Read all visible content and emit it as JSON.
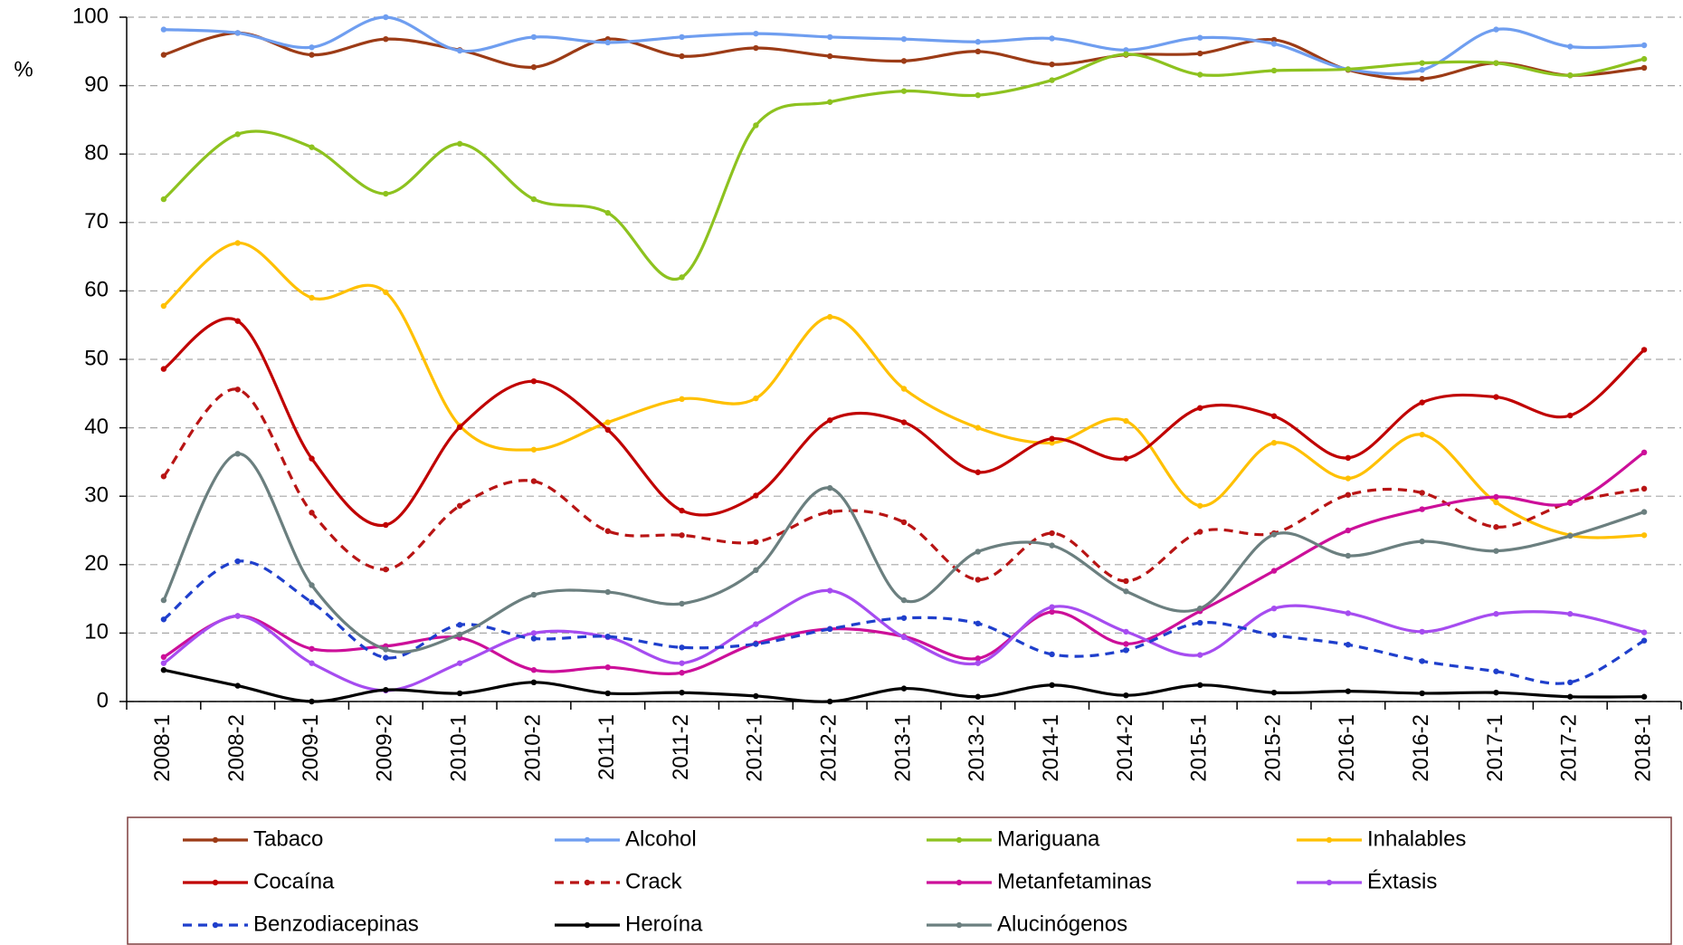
{
  "chart_data": {
    "type": "line",
    "y_label": "%",
    "categories": [
      "2008-1",
      "2008-2",
      "2009-1",
      "2009-2",
      "2010-1",
      "2010-2",
      "2011-1",
      "2011-2",
      "2012-1",
      "2012-2",
      "2013-1",
      "2013-2",
      "2014-1",
      "2014-2",
      "2015-1",
      "2015-2",
      "2016-1",
      "2016-2",
      "2017-1",
      "2017-2",
      "2018-1"
    ],
    "ylim": [
      0,
      100
    ],
    "yticks": [
      0,
      10,
      20,
      30,
      40,
      50,
      60,
      70,
      80,
      90,
      100
    ],
    "grid": true,
    "legend": "bottom",
    "series": [
      {
        "name": "Tabaco",
        "color": "#9c3b16",
        "dash": false,
        "values": [
          94.5,
          97.7,
          94.5,
          96.8,
          95.2,
          92.7,
          96.8,
          94.3,
          95.5,
          94.3,
          93.6,
          95.0,
          93.1,
          94.5,
          94.7,
          96.7,
          92.3,
          91.0,
          93.3,
          91.5,
          92.6
        ]
      },
      {
        "name": "Alcohol",
        "color": "#6f9ef0",
        "dash": false,
        "values": [
          98.2,
          97.7,
          95.6,
          100,
          95.1,
          97.1,
          96.3,
          97.1,
          97.6,
          97.1,
          96.8,
          96.4,
          96.9,
          95.2,
          97.0,
          96.1,
          92.4,
          92.3,
          98.2,
          95.7,
          95.9
        ]
      },
      {
        "name": "Mariguana",
        "color": "#8dc21f",
        "dash": false,
        "values": [
          73.4,
          82.9,
          81.0,
          74.2,
          81.5,
          73.4,
          71.4,
          62.0,
          84.2,
          87.6,
          89.2,
          88.6,
          90.8,
          94.6,
          91.6,
          92.2,
          92.4,
          93.3,
          93.3,
          91.5,
          93.9
        ]
      },
      {
        "name": "Inhalables",
        "color": "#ffc000",
        "dash": false,
        "values": [
          57.8,
          67.0,
          59.0,
          59.8,
          40.3,
          36.8,
          40.8,
          44.2,
          44.3,
          56.2,
          45.7,
          40.0,
          37.8,
          41.0,
          28.6,
          37.8,
          32.6,
          39.0,
          29.1,
          24.3,
          24.3
        ]
      },
      {
        "name": "Cocaína",
        "color": "#c00000",
        "dash": false,
        "values": [
          48.6,
          55.6,
          35.5,
          25.8,
          40.1,
          46.8,
          39.7,
          27.9,
          30.1,
          41.1,
          40.8,
          33.5,
          38.4,
          35.5,
          42.9,
          41.7,
          35.6,
          43.7,
          44.5,
          41.8,
          51.4
        ]
      },
      {
        "name": "Crack",
        "color": "#b81414",
        "dash": true,
        "values": [
          32.9,
          45.6,
          27.6,
          19.3,
          28.6,
          32.2,
          24.9,
          24.3,
          23.3,
          27.7,
          26.2,
          17.8,
          24.6,
          17.6,
          24.8,
          24.6,
          30.2,
          30.5,
          25.5,
          29.1,
          31.1
        ]
      },
      {
        "name": "Metanfetaminas",
        "color": "#cc0f99",
        "dash": false,
        "values": [
          6.5,
          12.5,
          7.7,
          8.1,
          9.3,
          4.6,
          5.0,
          4.2,
          8.5,
          10.6,
          9.5,
          6.3,
          13.1,
          8.4,
          13.2,
          19.1,
          25.0,
          28.1,
          29.9,
          29.0,
          36.4
        ]
      },
      {
        "name": "Éxtasis",
        "color": "#a64cf0",
        "dash": false,
        "values": [
          5.6,
          12.5,
          5.6,
          1.6,
          5.6,
          10.0,
          9.4,
          5.6,
          11.3,
          16.2,
          9.4,
          5.6,
          13.8,
          10.2,
          6.8,
          13.6,
          12.9,
          10.2,
          12.8,
          12.8,
          10.1
        ]
      },
      {
        "name": "Benzodiacepinas",
        "color": "#1f3fcc",
        "dash": true,
        "values": [
          12.0,
          20.5,
          14.5,
          6.4,
          11.2,
          9.2,
          9.5,
          7.9,
          8.4,
          10.6,
          12.2,
          11.4,
          6.9,
          7.5,
          11.5,
          9.7,
          8.3,
          5.9,
          4.4,
          2.8,
          8.9
        ]
      },
      {
        "name": "Heroína",
        "color": "#000000",
        "dash": false,
        "values": [
          4.6,
          2.3,
          0,
          1.7,
          1.2,
          2.8,
          1.2,
          1.3,
          0.8,
          0,
          1.9,
          0.7,
          2.4,
          0.9,
          2.4,
          1.3,
          1.5,
          1.2,
          1.3,
          0.7,
          0.7
        ]
      },
      {
        "name": "Alucinógenos",
        "color": "#6b7f7f",
        "dash": false,
        "values": [
          14.8,
          36.2,
          17.0,
          7.6,
          9.8,
          15.6,
          16.0,
          14.3,
          19.2,
          31.2,
          14.8,
          21.9,
          22.8,
          16.1,
          13.6,
          24.4,
          21.3,
          23.4,
          22.0,
          24.2,
          27.7
        ]
      }
    ]
  }
}
